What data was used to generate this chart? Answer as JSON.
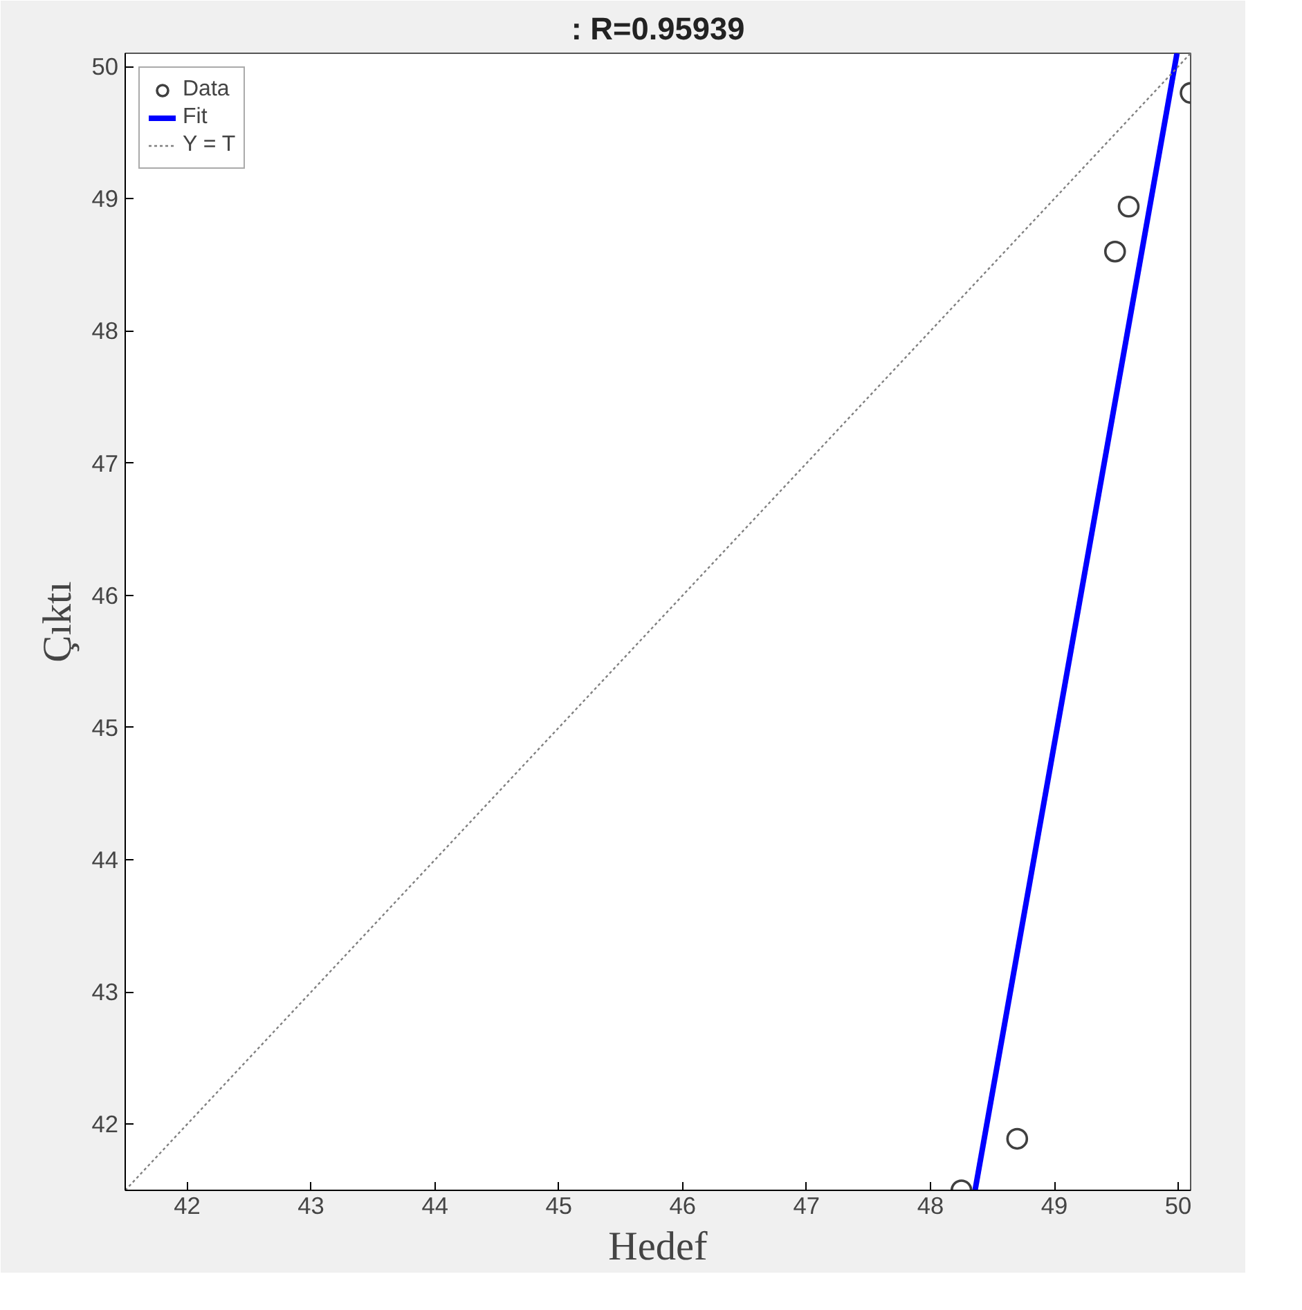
{
  "chart_data": {
    "type": "scatter",
    "title": ": R=0.95939",
    "xlabel": "Hedef",
    "ylabel": "Çıktı",
    "xlim": [
      41.5,
      50.1
    ],
    "ylim": [
      41.5,
      50.1
    ],
    "xticks": [
      42,
      43,
      44,
      45,
      46,
      47,
      48,
      49,
      50
    ],
    "yticks": [
      42,
      43,
      44,
      45,
      46,
      47,
      48,
      49,
      50
    ],
    "grid": false,
    "legend": "top left",
    "series": [
      {
        "name": "Data",
        "marker": "circle",
        "color": "#404040",
        "x": [
          48.25,
          48.7,
          49.49,
          49.6,
          50.1
        ],
        "values": [
          41.5,
          41.89,
          48.6,
          48.94,
          49.8
        ]
      },
      {
        "name": "Fit",
        "type": "line",
        "color": "#0000ff",
        "line_style": "solid",
        "x": [
          48.36,
          49.99
        ],
        "values": [
          41.5,
          50.1
        ]
      },
      {
        "name": "Y = T",
        "type": "line",
        "color": "#808080",
        "line_style": "dotted",
        "x": [
          41.5,
          50.1
        ],
        "values": [
          41.5,
          50.1
        ]
      }
    ]
  }
}
